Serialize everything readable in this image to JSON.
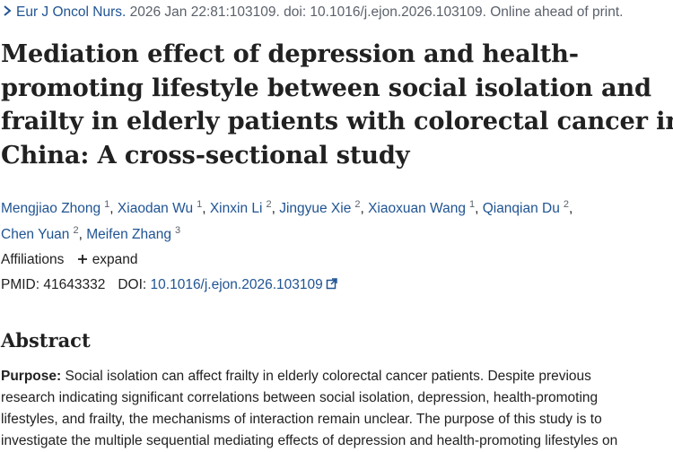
{
  "citation": {
    "journal": "Eur J Oncol Nurs.",
    "details": "2026 Jan 22:81:103109. doi: 10.1016/j.ejon.2026.103109. Online ahead of print."
  },
  "title_lines": [
    "Mediation effect of depression and health-",
    "promoting lifestyle between social isolation and",
    "frailty in elderly patients with colorectal cancer in",
    "China: A cross-sectional study"
  ],
  "authors": [
    {
      "name": "Mengjiao Zhong",
      "aff": "1"
    },
    {
      "name": "Xiaodan Wu",
      "aff": "1"
    },
    {
      "name": "Xinxin Li",
      "aff": "2"
    },
    {
      "name": "Jingyue Xie",
      "aff": "2"
    },
    {
      "name": "Xiaoxuan Wang",
      "aff": "1"
    },
    {
      "name": "Qianqian Du",
      "aff": "2"
    },
    {
      "name": "Chen Yuan",
      "aff": "2"
    },
    {
      "name": "Meifen Zhang",
      "aff": "3"
    }
  ],
  "affiliations": {
    "label": "Affiliations",
    "expand_label": "expand"
  },
  "identifiers": {
    "pmid_label": "PMID:",
    "pmid": "41643332",
    "doi_label": "DOI:",
    "doi": "10.1016/j.ejon.2026.103109"
  },
  "abstract": {
    "heading": "Abstract",
    "label": "Purpose:",
    "lines": [
      " Social isolation can affect frailty in elderly colorectal cancer patients. Despite previous",
      "research indicating significant correlations between social isolation, depression, health-promoting",
      "lifestyles, and frailty, the mechanisms of interaction remain unclear. The purpose of this study is to",
      "investigate the multiple sequential mediating effects of depression and health-promoting lifestyles on"
    ]
  },
  "colors": {
    "link": "#205493",
    "text": "#212121",
    "muted": "#5b616b"
  },
  "icons": {
    "breadcrumb": "chevron-right-icon",
    "expand": "plus-icon",
    "external": "external-link-icon"
  }
}
